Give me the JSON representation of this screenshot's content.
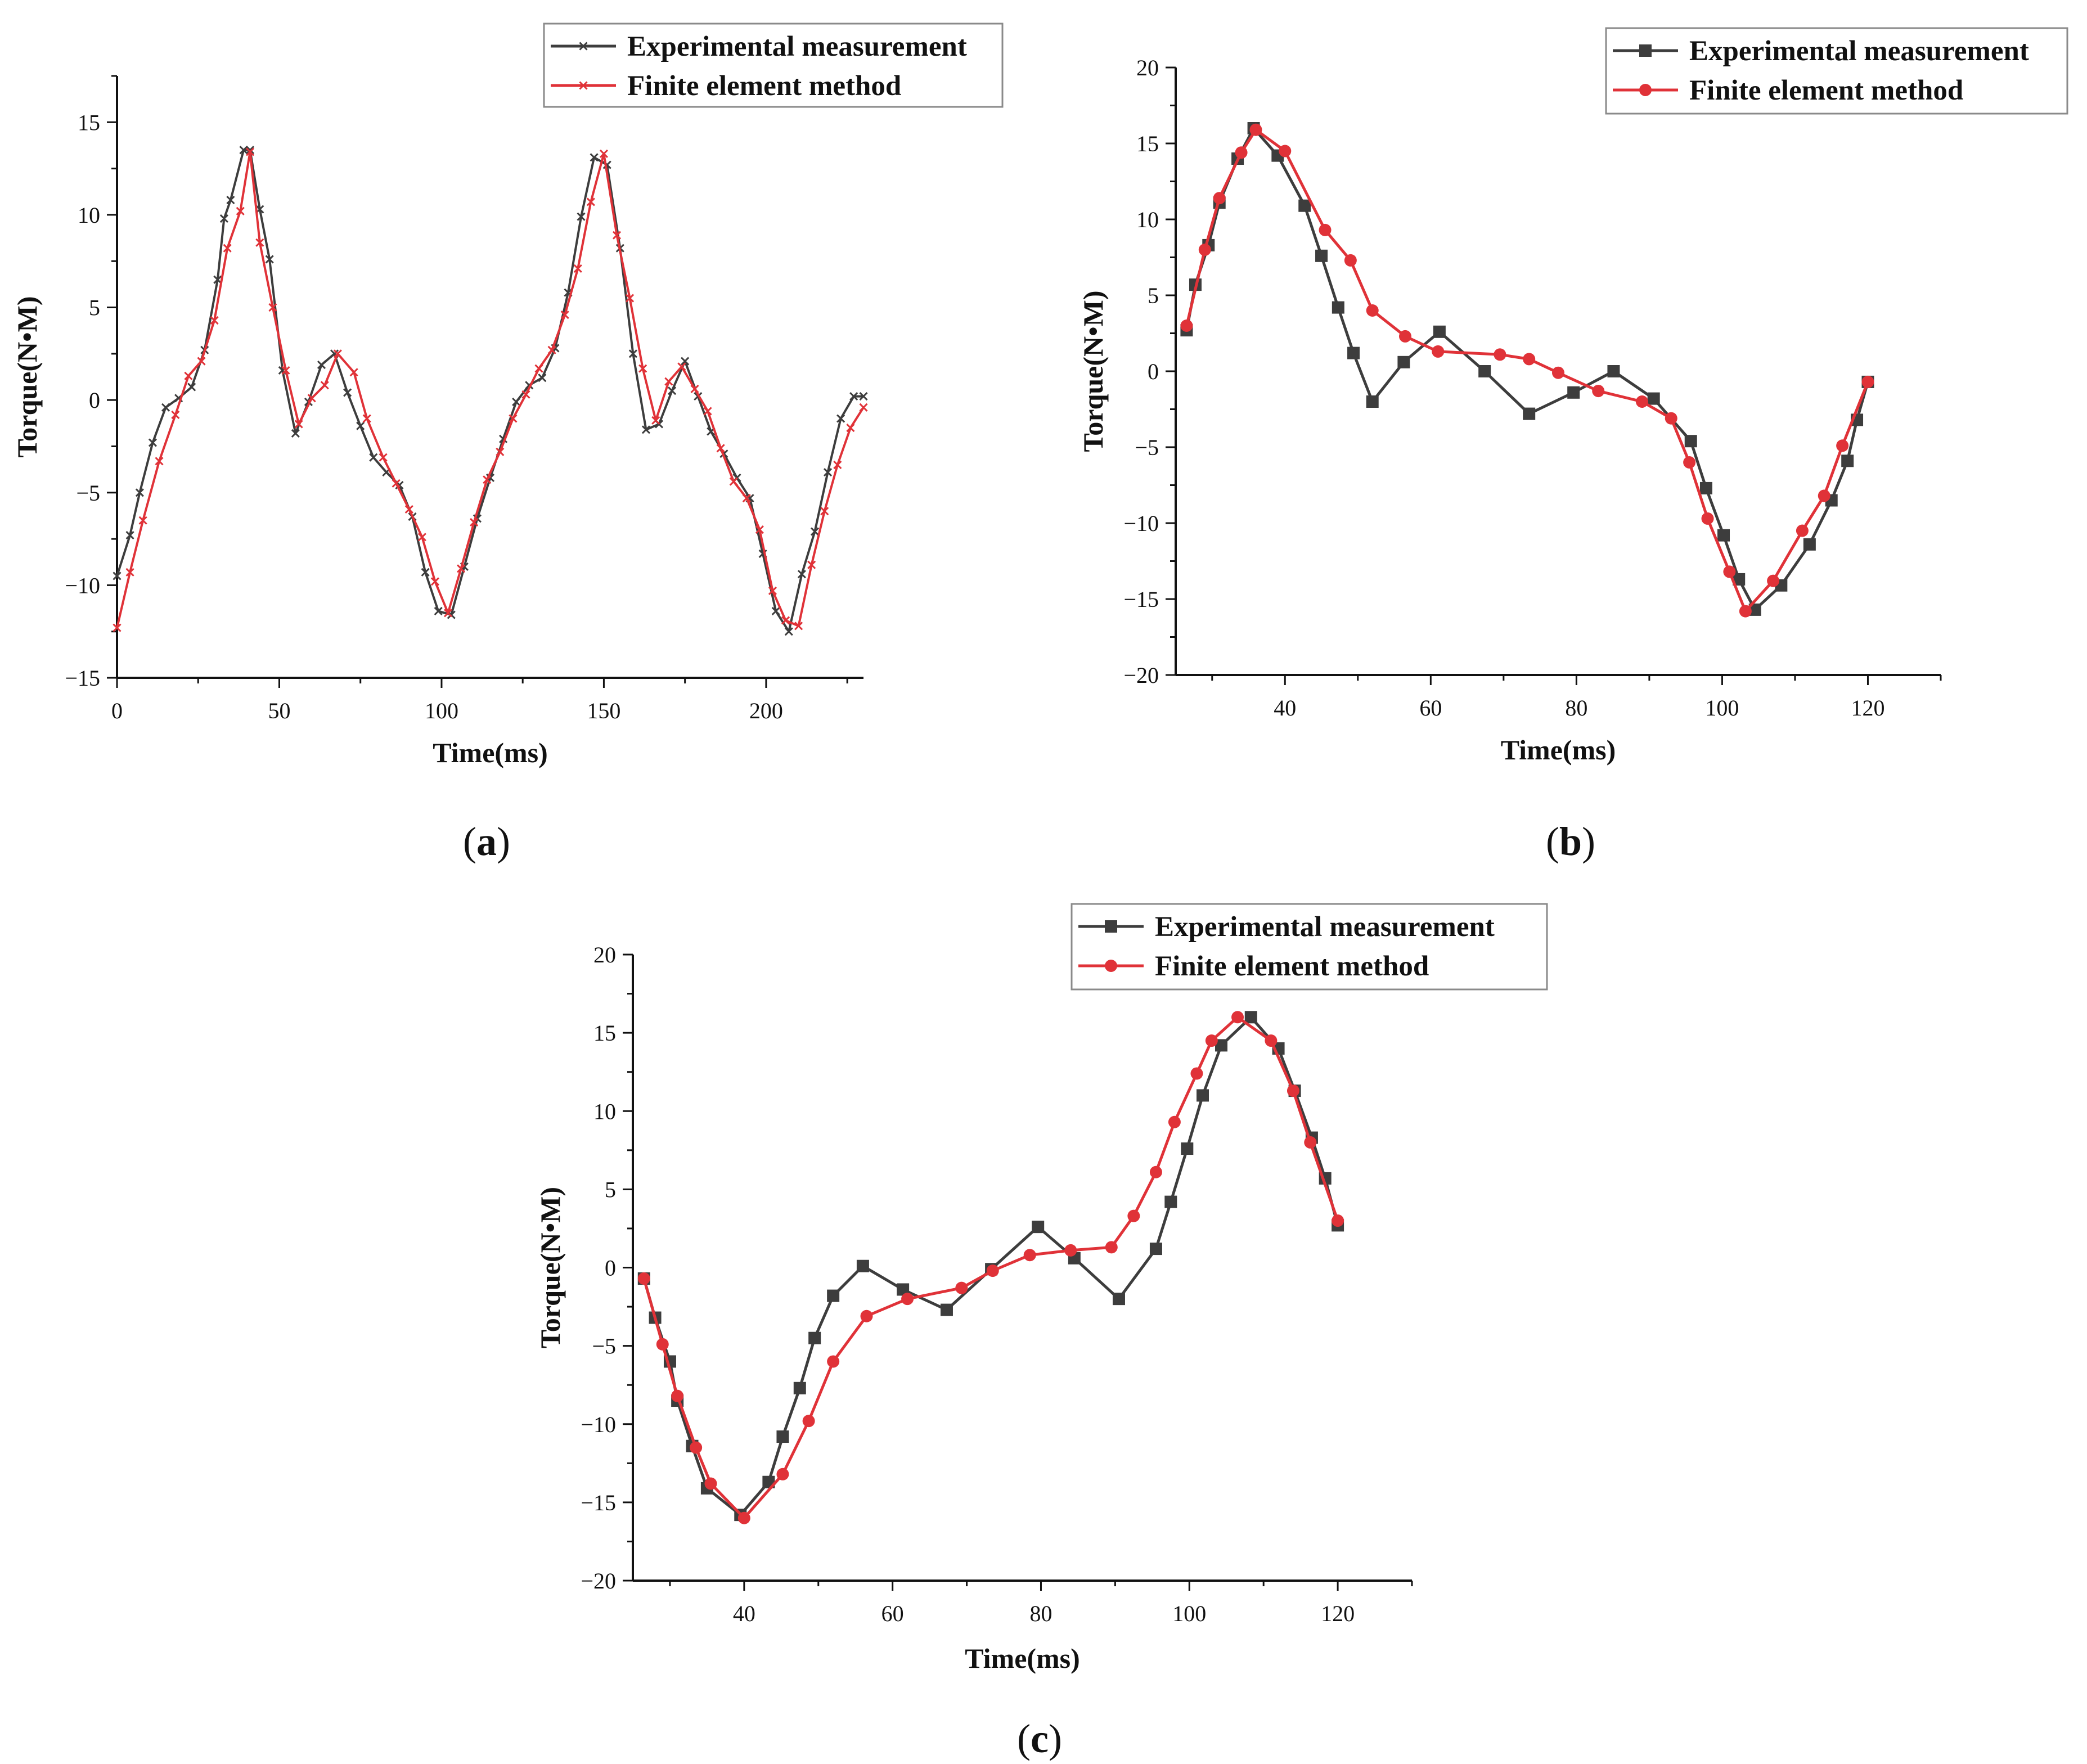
{
  "colors": {
    "experimental": "#3d3d3d",
    "fem": "#e03238",
    "axis": "#111111",
    "legend_border": "#8a8a8a"
  },
  "chart_data": [
    {
      "id": "a",
      "panel_label": "a",
      "type": "line",
      "xlabel": "Time(ms)",
      "ylabel": "Torque(N•M)",
      "xlim": [
        0,
        230
      ],
      "ylim": [
        -15,
        17.5
      ],
      "xticks": [
        0,
        50,
        100,
        150,
        200
      ],
      "yticks": [
        -15,
        -10,
        -5,
        0,
        5,
        10,
        15
      ],
      "legend_position": "top-right",
      "series": [
        {
          "name": "Experimental measurement",
          "color": "#3d3d3d",
          "marker": "x",
          "x": [
            0,
            4,
            7,
            11,
            15,
            19,
            23,
            27,
            31,
            33,
            35,
            39,
            41,
            44,
            47,
            51,
            55,
            59,
            63,
            67,
            71,
            75,
            79,
            83,
            87,
            91,
            95,
            99,
            103,
            107,
            111,
            115,
            119,
            123,
            127,
            131,
            135,
            139,
            143,
            147,
            151,
            155,
            159,
            163,
            167,
            171,
            175,
            179,
            183,
            187,
            191,
            195,
            199,
            203,
            207,
            211,
            215,
            219,
            223,
            227,
            230
          ],
          "y": [
            -9.5,
            -7.3,
            -5,
            -2.3,
            -0.4,
            0.1,
            0.7,
            2.7,
            6.5,
            9.8,
            10.8,
            13.5,
            13.5,
            10.3,
            7.6,
            1.6,
            -1.8,
            -0.1,
            1.9,
            2.5,
            0.4,
            -1.4,
            -3.1,
            -3.9,
            -4.6,
            -6.3,
            -9.3,
            -11.4,
            -11.6,
            -9,
            -6.4,
            -4.2,
            -2.1,
            -0.1,
            0.8,
            1.2,
            2.8,
            5.8,
            9.9,
            13.1,
            12.7,
            8.2,
            2.5,
            -1.6,
            -1.3,
            0.5,
            2.1,
            0.2,
            -1.7,
            -2.9,
            -4.2,
            -5.3,
            -8.3,
            -11.4,
            -12.5,
            -9.4,
            -7.1,
            -3.9,
            -1,
            0.2,
            0.2
          ]
        },
        {
          "name": "Finite element method",
          "color": "#e03238",
          "marker": "x",
          "x": [
            0,
            4,
            8,
            13,
            18,
            22,
            26,
            30,
            34,
            38,
            41,
            44,
            48,
            52,
            56,
            60,
            64,
            68,
            73,
            77,
            82,
            86,
            90,
            94,
            98,
            102,
            106,
            110,
            114,
            118,
            122,
            126,
            130,
            134,
            138,
            142,
            146,
            150,
            154,
            158,
            162,
            166,
            170,
            174,
            178,
            182,
            186,
            190,
            194,
            198,
            202,
            206,
            210,
            214,
            218,
            222,
            226,
            230
          ],
          "y": [
            -12.3,
            -9.3,
            -6.5,
            -3.3,
            -0.8,
            1.3,
            2.1,
            4.3,
            8.2,
            10.2,
            13.4,
            8.5,
            5,
            1.6,
            -1.3,
            0.1,
            0.8,
            2.5,
            1.5,
            -1,
            -3.1,
            -4.5,
            -5.9,
            -7.4,
            -9.8,
            -11.5,
            -9.1,
            -6.6,
            -4.3,
            -2.8,
            -1,
            0.3,
            1.7,
            2.7,
            4.6,
            7.1,
            10.7,
            13.3,
            8.9,
            5.5,
            1.7,
            -1.1,
            1,
            1.8,
            0.6,
            -0.6,
            -2.6,
            -4.4,
            -5.3,
            -7,
            -10.3,
            -11.9,
            -12.2,
            -8.9,
            -6,
            -3.5,
            -1.5,
            -0.4
          ]
        }
      ]
    },
    {
      "id": "b",
      "panel_label": "b",
      "type": "line",
      "xlabel": "Time(ms)",
      "ylabel": "Torque(N•M)",
      "xlim": [
        25,
        130
      ],
      "ylim": [
        -20,
        20
      ],
      "xticks": [
        40,
        60,
        80,
        100,
        120
      ],
      "yticks": [
        -20,
        -15,
        -10,
        -5,
        0,
        5,
        10,
        15,
        20
      ],
      "legend_position": "top-right",
      "series": [
        {
          "name": "Experimental measurement",
          "color": "#3d3d3d",
          "marker": "square",
          "x": [
            26.5,
            27.7,
            29.5,
            31,
            33.5,
            35.7,
            39,
            42.7,
            45,
            47.3,
            49.4,
            52,
            56.3,
            61.2,
            67.4,
            73.5,
            79.6,
            85.1,
            90.6,
            95.7,
            97.8,
            100.2,
            102.3,
            104.5,
            108.1,
            112,
            115,
            117.2,
            118.5,
            120
          ],
          "y": [
            2.7,
            5.7,
            8.3,
            11.1,
            14,
            16,
            14.2,
            10.9,
            7.6,
            4.2,
            1.2,
            -2,
            0.6,
            2.6,
            0,
            -2.8,
            -1.4,
            0,
            -1.8,
            -4.6,
            -7.7,
            -10.8,
            -13.7,
            -15.7,
            -14.1,
            -11.4,
            -8.5,
            -5.9,
            -3.2,
            -0.7
          ]
        },
        {
          "name": "Finite element method",
          "color": "#e03238",
          "marker": "circle",
          "x": [
            26.5,
            29,
            31,
            34,
            36,
            40,
            45.5,
            49,
            52,
            56.5,
            61,
            69.5,
            73.5,
            77.5,
            83,
            89,
            93,
            95.5,
            98,
            101,
            103.2,
            107,
            111,
            114,
            116.5,
            120
          ],
          "y": [
            3,
            8,
            11.4,
            14.4,
            15.9,
            14.5,
            9.3,
            7.3,
            4,
            2.3,
            1.3,
            1.1,
            0.8,
            -0.1,
            -1.3,
            -2,
            -3.1,
            -6,
            -9.7,
            -13.2,
            -15.8,
            -13.8,
            -10.5,
            -8.2,
            -4.9,
            -0.7
          ]
        }
      ]
    },
    {
      "id": "c",
      "panel_label": "c",
      "type": "line",
      "xlabel": "Time(ms)",
      "ylabel": "Torque(N•M)",
      "xlim": [
        25,
        130
      ],
      "ylim": [
        -20,
        20
      ],
      "xticks": [
        40,
        60,
        80,
        100,
        120
      ],
      "yticks": [
        -20,
        -15,
        -10,
        -5,
        0,
        5,
        10,
        15,
        20
      ],
      "legend_position": "top-left",
      "series": [
        {
          "name": "Experimental measurement",
          "color": "#3d3d3d",
          "marker": "square",
          "x": [
            26.5,
            28,
            30,
            31,
            33,
            35,
            39.5,
            43.3,
            45.2,
            47.5,
            49.5,
            52,
            56,
            61.4,
            67.3,
            73.3,
            79.6,
            84.5,
            90.5,
            95.5,
            97.5,
            99.7,
            101.8,
            104.3,
            108.3,
            112,
            114.2,
            116.5,
            118.3,
            120
          ],
          "y": [
            -0.7,
            -3.2,
            -6,
            -8.5,
            -11.4,
            -14.1,
            -15.8,
            -13.7,
            -10.8,
            -7.7,
            -4.5,
            -1.8,
            0.1,
            -1.4,
            -2.7,
            -0.1,
            2.6,
            0.6,
            -2,
            1.2,
            4.2,
            7.6,
            11,
            14.2,
            16,
            14,
            11.3,
            8.3,
            5.7,
            2.7
          ]
        },
        {
          "name": "Finite element method",
          "color": "#e03238",
          "marker": "circle",
          "x": [
            26.5,
            29,
            31,
            33.5,
            35.5,
            40,
            45.2,
            48.7,
            52,
            56.5,
            62,
            69.3,
            73.5,
            78.5,
            84,
            89.5,
            92.5,
            95.5,
            98,
            101,
            103,
            106.5,
            111,
            114,
            116.3,
            120
          ],
          "y": [
            -0.7,
            -4.9,
            -8.2,
            -11.5,
            -13.8,
            -16,
            -13.2,
            -9.8,
            -6,
            -3.1,
            -2,
            -1.3,
            -0.2,
            0.8,
            1.1,
            1.3,
            3.3,
            6.1,
            9.3,
            12.4,
            14.5,
            16,
            14.5,
            11.3,
            8,
            3
          ]
        }
      ]
    }
  ]
}
